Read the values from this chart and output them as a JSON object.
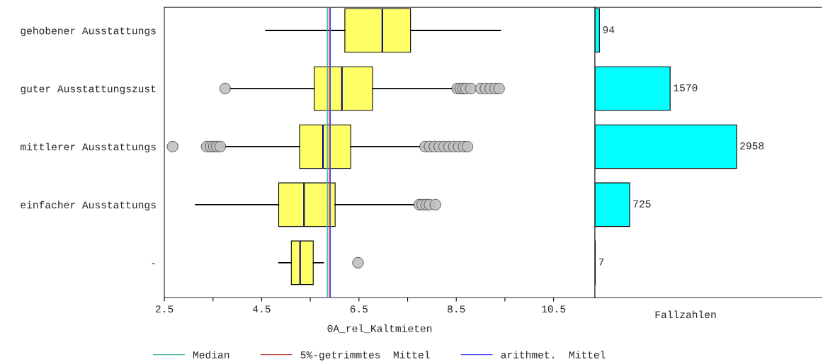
{
  "chart_data": [
    {
      "type": "box",
      "orientation": "horizontal",
      "xlabel": "0A_rel_Kaltmieten",
      "categories": [
        "gehobener Ausstattungs",
        "guter Ausstattungszust",
        "mittlerer Ausstattungs",
        "einfacher Ausstattungs",
        "-"
      ],
      "xlim": [
        2.5,
        11.35
      ],
      "xticks": [
        2.5,
        {
          "value": 3.5,
          "label": null
        },
        4.5,
        {
          "value": 5.5,
          "label": null
        },
        6.5,
        {
          "value": 7.5,
          "label": null
        },
        8.5,
        {
          "value": 9.5,
          "label": null
        },
        10.5
      ],
      "series": [
        {
          "color": "#ffff66",
          "boxes": [
            {
              "low": 4.58,
              "q1": 6.21,
              "median": 6.98,
              "q3": 7.56,
              "high": 9.41
            },
            {
              "low": 3.82,
              "q1": 5.58,
              "median": 6.15,
              "q3": 6.78,
              "high": 8.46,
              "outliers": [
                3.75,
                8.52,
                8.58,
                8.64,
                8.7,
                8.8,
                9.0,
                9.1,
                9.2,
                9.3,
                9.38
              ]
            },
            {
              "low": 3.71,
              "q1": 5.28,
              "median": 5.76,
              "q3": 6.33,
              "high": 7.82,
              "outliers": [
                2.67,
                3.37,
                3.45,
                3.52,
                3.58,
                3.65,
                7.86,
                7.95,
                8.05,
                8.15,
                8.25,
                8.35,
                8.45,
                8.55,
                8.65,
                8.73
              ]
            },
            {
              "low": 3.14,
              "q1": 4.85,
              "median": 5.37,
              "q3": 6.01,
              "high": 7.65,
              "outliers": [
                7.74,
                7.8,
                7.88,
                7.95,
                8.07
              ]
            },
            {
              "low": 4.85,
              "q1": 5.11,
              "median": 5.29,
              "q3": 5.56,
              "high": 5.77,
              "outliers": [
                6.48
              ]
            }
          ]
        }
      ],
      "ref_lines": [
        {
          "axis": "x",
          "value": 5.85,
          "label": "Median",
          "color": "#40b0a0"
        },
        {
          "axis": "x",
          "value": 5.89,
          "label": "5%-getrimmtes  Mittel",
          "color": "#c04040"
        },
        {
          "axis": "x",
          "value": 5.91,
          "label": "arithmet.  Mittel",
          "color": "#4040ff"
        }
      ],
      "legend": "bottom"
    },
    {
      "type": "bar",
      "orientation": "horizontal",
      "xlabel": "Fallzahlen",
      "categories": [
        null,
        null,
        null,
        null,
        null
      ],
      "series": [
        {
          "color": "#00ffff",
          "values": [
            94,
            1570,
            2958,
            725,
            7
          ]
        }
      ],
      "data_labels": true
    }
  ]
}
